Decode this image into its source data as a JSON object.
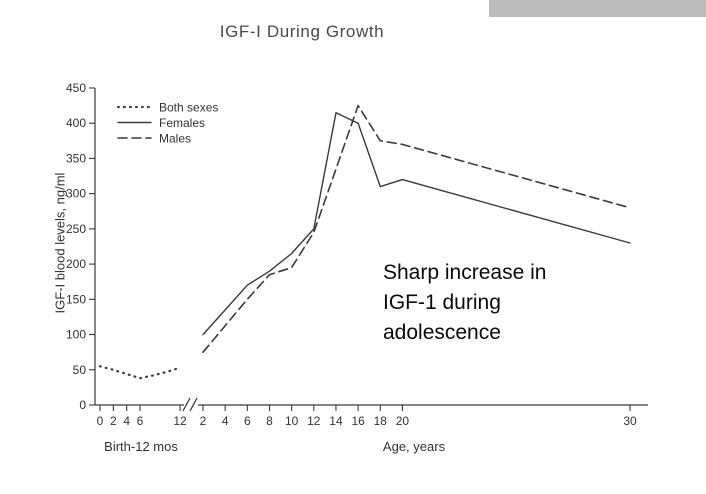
{
  "colors": {
    "line": "#3a3a3a",
    "text": "#333333",
    "title_text": "#4a4a4a",
    "gray_bar": "#bcbcbc"
  },
  "chart_data": {
    "type": "line",
    "title": "IGF-I During Growth",
    "ylabel": "IGF-I blood levels, ng/ml",
    "ylim": [
      0,
      450
    ],
    "y_ticks": [
      0,
      50,
      100,
      150,
      200,
      250,
      300,
      350,
      400,
      450
    ],
    "x_axis": {
      "axis_break": true,
      "months_segment": {
        "label": "Birth-12 mos",
        "unit": "months",
        "ticks": [
          0,
          2,
          4,
          6,
          12
        ]
      },
      "years_segment": {
        "label": "Age, years",
        "unit": "years",
        "ticks": [
          2,
          4,
          6,
          8,
          10,
          12,
          14,
          16,
          18,
          20,
          30
        ]
      }
    },
    "legend": {
      "position": "top-left",
      "entries": [
        "Both sexes",
        "Females",
        "Males"
      ]
    },
    "series": [
      {
        "name": "Both sexes",
        "style": "dotted",
        "segment": "months",
        "x": [
          0,
          2,
          4,
          6,
          8,
          10,
          12
        ],
        "values": [
          55,
          50,
          44,
          38,
          42,
          47,
          53
        ]
      },
      {
        "name": "Females",
        "style": "solid",
        "segment": "years",
        "x": [
          2,
          6,
          8,
          10,
          12,
          14,
          16,
          18,
          20,
          30
        ],
        "values": [
          100,
          170,
          190,
          215,
          250,
          415,
          400,
          310,
          320,
          230
        ]
      },
      {
        "name": "Males",
        "style": "dashed",
        "segment": "years",
        "x": [
          2,
          6,
          8,
          10,
          12,
          14,
          16,
          18,
          20,
          30
        ],
        "values": [
          75,
          150,
          185,
          195,
          245,
          335,
          425,
          375,
          370,
          280
        ]
      }
    ],
    "annotation": "Sharp increase in\nIGF-1 during\nadolescence"
  }
}
